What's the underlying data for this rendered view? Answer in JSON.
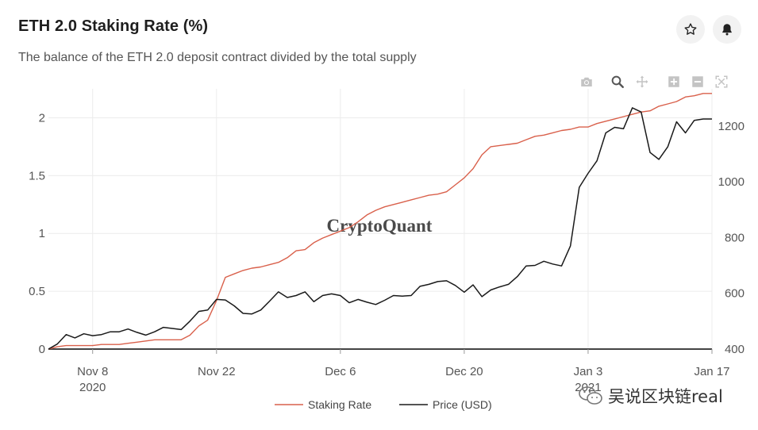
{
  "header": {
    "title": "ETH 2.0 Staking Rate (%)",
    "subtitle": "The balance of the ETH 2.0 deposit contract divided by the total supply"
  },
  "icons": {
    "favorite": "star-icon",
    "alert": "bell-icon",
    "camera": "camera-icon",
    "zoom": "zoom-icon",
    "pan": "pan-icon",
    "zoom_in": "zoom-in-icon",
    "zoom_out": "zoom-out-icon",
    "reset": "autoscale-icon"
  },
  "watermark": "CryptoQuant",
  "overlay_text": "吴说区块链real",
  "colors": {
    "staking": "#d9604b",
    "price": "#1a1a1a",
    "grid": "#ececec",
    "axis": "#444444"
  },
  "chart_data": {
    "type": "line",
    "title": "ETH 2.0 Staking Rate (%)",
    "x_start": "2020-11-03",
    "x_end": "2021-01-17",
    "x_ticks": [
      {
        "day": 5,
        "label": "Nov 8",
        "sublabel": "2020"
      },
      {
        "day": 19,
        "label": "Nov 22",
        "sublabel": ""
      },
      {
        "day": 33,
        "label": "Dec 6",
        "sublabel": ""
      },
      {
        "day": 47,
        "label": "Dec 20",
        "sublabel": ""
      },
      {
        "day": 61,
        "label": "Jan 3",
        "sublabel": "2021"
      },
      {
        "day": 75,
        "label": "Jan 17",
        "sublabel": ""
      }
    ],
    "y_left": {
      "range": [
        0,
        2.25
      ],
      "ticks": [
        0,
        0.5,
        1,
        1.5,
        2
      ],
      "tick_labels": [
        "0",
        "0.5",
        "1",
        "1.5",
        "2"
      ]
    },
    "y_right": {
      "range": [
        400,
        1333
      ],
      "ticks": [
        400,
        600,
        800,
        1000,
        1200
      ],
      "tick_labels": [
        "400",
        "600",
        "800",
        "1000",
        "1200"
      ]
    },
    "series": [
      {
        "name": "Staking Rate",
        "axis": "left",
        "x": [
          0,
          1,
          2,
          3,
          4,
          5,
          6,
          7,
          8,
          9,
          10,
          11,
          12,
          13,
          14,
          15,
          16,
          17,
          18,
          19,
          20,
          21,
          22,
          23,
          24,
          25,
          26,
          27,
          28,
          29,
          30,
          31,
          32,
          33,
          34,
          35,
          36,
          37,
          38,
          39,
          40,
          41,
          42,
          43,
          44,
          45,
          46,
          47,
          48,
          49,
          50,
          51,
          52,
          53,
          54,
          55,
          56,
          57,
          58,
          59,
          60,
          61,
          62,
          63,
          64,
          65,
          66,
          67,
          68,
          69,
          70,
          71,
          72,
          73,
          74,
          75
        ],
        "values": [
          0.0,
          0.02,
          0.03,
          0.03,
          0.03,
          0.03,
          0.04,
          0.04,
          0.04,
          0.05,
          0.06,
          0.07,
          0.08,
          0.08,
          0.08,
          0.08,
          0.12,
          0.2,
          0.25,
          0.42,
          0.62,
          0.65,
          0.68,
          0.7,
          0.71,
          0.73,
          0.75,
          0.79,
          0.85,
          0.86,
          0.92,
          0.96,
          0.99,
          1.02,
          1.05,
          1.1,
          1.16,
          1.2,
          1.23,
          1.25,
          1.27,
          1.29,
          1.31,
          1.33,
          1.34,
          1.36,
          1.42,
          1.48,
          1.56,
          1.68,
          1.75,
          1.76,
          1.77,
          1.78,
          1.81,
          1.84,
          1.85,
          1.87,
          1.89,
          1.9,
          1.92,
          1.92,
          1.95,
          1.97,
          1.99,
          2.01,
          2.03,
          2.05,
          2.06,
          2.1,
          2.12,
          2.14,
          2.18,
          2.19,
          2.21,
          2.21
        ]
      },
      {
        "name": "Price (USD)",
        "axis": "right",
        "x": [
          0,
          1,
          2,
          3,
          4,
          5,
          6,
          7,
          8,
          9,
          10,
          11,
          12,
          13,
          14,
          15,
          16,
          17,
          18,
          19,
          20,
          21,
          22,
          23,
          24,
          25,
          26,
          27,
          28,
          29,
          30,
          31,
          32,
          33,
          34,
          35,
          36,
          37,
          38,
          39,
          40,
          41,
          42,
          43,
          44,
          45,
          46,
          47,
          48,
          49,
          50,
          51,
          52,
          53,
          54,
          55,
          56,
          57,
          58,
          59,
          60,
          61,
          62,
          63,
          64,
          65,
          66,
          67,
          68,
          69,
          70,
          71,
          72,
          73,
          74,
          75
        ],
        "values": [
          400,
          418,
          452,
          440,
          455,
          448,
          452,
          462,
          462,
          472,
          460,
          450,
          462,
          478,
          474,
          470,
          500,
          535,
          540,
          578,
          576,
          555,
          528,
          526,
          540,
          572,
          605,
          585,
          592,
          605,
          570,
          592,
          598,
          592,
          566,
          578,
          568,
          560,
          575,
          592,
          590,
          592,
          625,
          632,
          642,
          645,
          628,
          604,
          630,
          588,
          612,
          623,
          632,
          660,
          698,
          700,
          715,
          705,
          698,
          770,
          980,
          1030,
          1075,
          1175,
          1195,
          1190,
          1265,
          1250,
          1105,
          1080,
          1125,
          1215,
          1175,
          1220,
          1225,
          1225
        ]
      }
    ],
    "legend": [
      "Staking Rate",
      "Price (USD)"
    ],
    "legend_position": "bottom-center",
    "annotations": [
      "CryptoQuant"
    ]
  }
}
